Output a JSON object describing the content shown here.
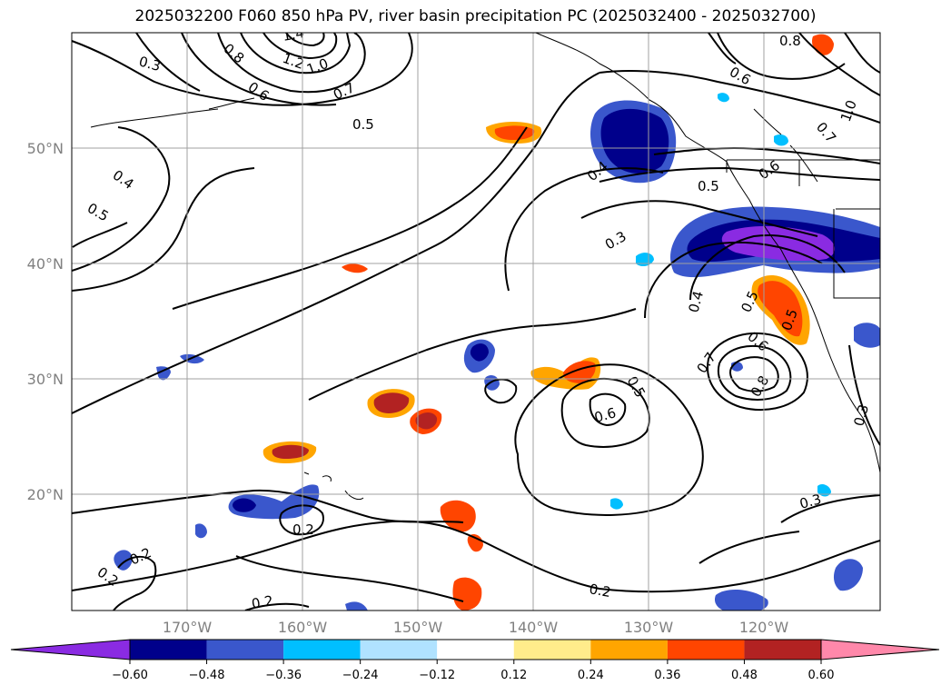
{
  "title": "2025032200 F060 850 hPa PV, river basin precipitation PC (2025032400 - 2025032700)",
  "latitude_labels": [
    "50°N",
    "40°N",
    "30°N",
    "20°N"
  ],
  "longitude_labels": [
    "170°W",
    "160°W",
    "150°W",
    "140°W",
    "130°W",
    "120°W"
  ],
  "colorbar": {
    "colors": [
      "#8a2be2",
      "#00008b",
      "#3a57cc",
      "#00bfff",
      "#b0e2ff",
      "#ffffff",
      "#ffec8b",
      "#ffa500",
      "#ff4500",
      "#b22222",
      "#ff88aa"
    ],
    "tick_labels": [
      "−0.60",
      "−0.48",
      "−0.36",
      "−0.24",
      "−0.12",
      "0.12",
      "0.24",
      "0.36",
      "0.48",
      "0.60"
    ]
  },
  "contour_labels": [
    "0.3",
    "0.8",
    "1.4",
    "1.2",
    "1.0",
    "0.6",
    "0.7",
    "0.5",
    "0.8",
    "0.6",
    "1.0",
    "0.7",
    "0.4",
    "0.5",
    "0.5",
    "0.6",
    "0.4",
    "0.3",
    "0.4",
    "0.5",
    "0.5",
    "0.6",
    "0.7",
    "0.8",
    "0.5",
    "0.6",
    "0.3",
    "0.2",
    "0.2",
    "0.2",
    "0.2",
    "0.3",
    "0.2"
  ]
}
